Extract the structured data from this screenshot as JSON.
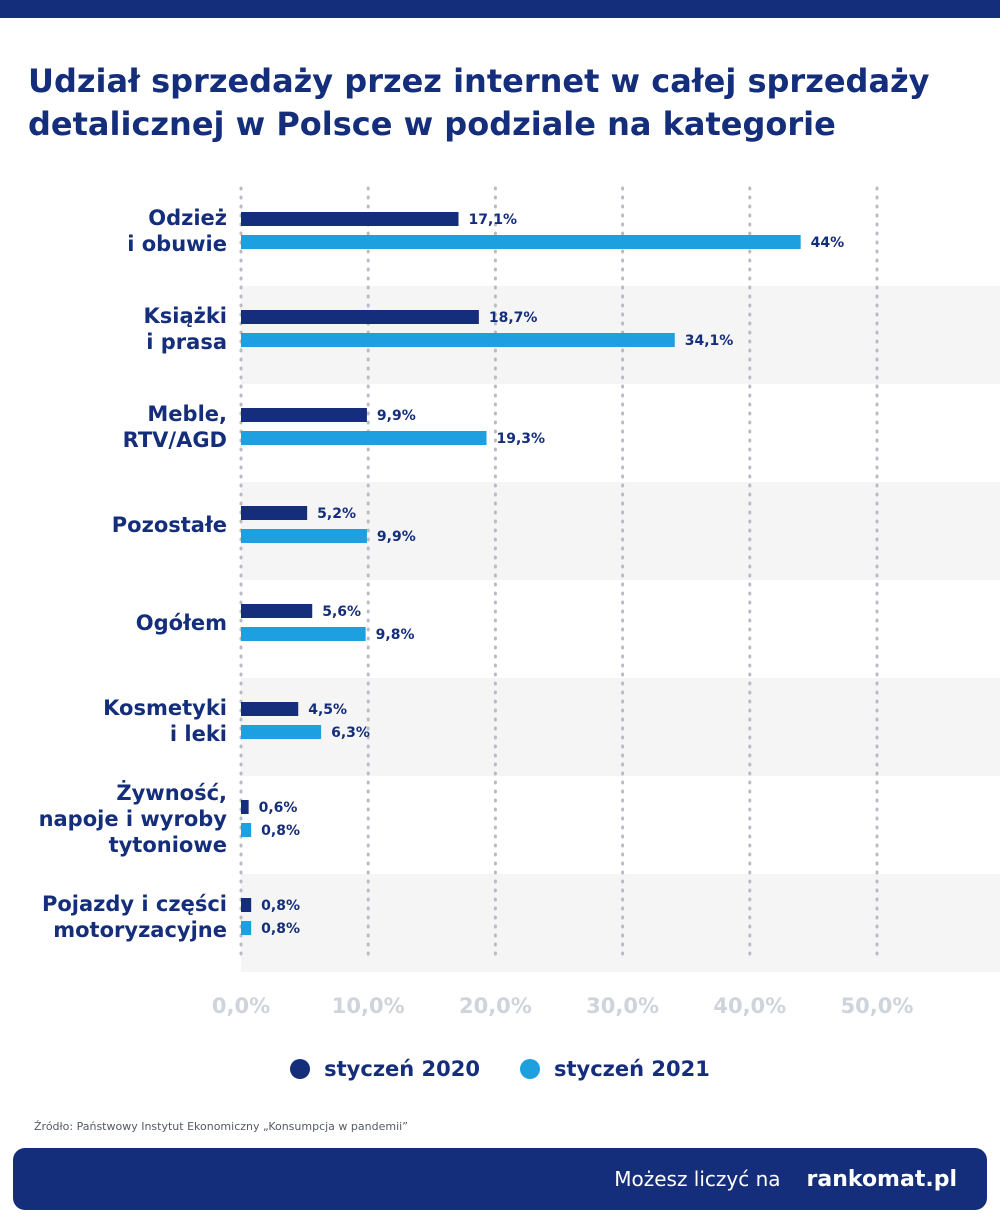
{
  "header": {
    "title": "Udział sprzedaży przez internet w całej sprzedaży detalicznej w Polsce w podziale na kategorie"
  },
  "chart_data": {
    "type": "bar",
    "orientation": "horizontal",
    "title": "Udział sprzedaży przez internet w całej sprzedaży detalicznej w Polsce w podziale na kategorie",
    "categories": [
      [
        "Odzież",
        "i obuwie"
      ],
      [
        "Książki",
        "i prasa"
      ],
      [
        "Meble,",
        "RTV/AGD"
      ],
      [
        "Pozostałe"
      ],
      [
        "Ogółem"
      ],
      [
        "Kosmetyki",
        "i leki"
      ],
      [
        "Żywność,",
        "napoje i wyroby",
        "tytoniowe"
      ],
      [
        "Pojazdy i części",
        "motoryzacyjne"
      ]
    ],
    "series": [
      {
        "name": "styczeń 2020",
        "color": "#142e7b",
        "values": [
          17.1,
          18.7,
          9.9,
          5.2,
          5.6,
          4.5,
          0.6,
          0.8
        ],
        "labels": [
          "17,1%",
          "18,7%",
          "9,9%",
          "5,2%",
          "5,6%",
          "4,5%",
          "0,6%",
          "0,8%"
        ]
      },
      {
        "name": "styczeń 2021",
        "color": "#1e9fe0",
        "values": [
          44,
          34.1,
          19.3,
          9.9,
          9.8,
          6.3,
          0.8,
          0.8
        ],
        "labels": [
          "44%",
          "34,1%",
          "19,3%",
          "9,9%",
          "9,8%",
          "6,3%",
          "0,8%",
          "0,8%"
        ]
      }
    ],
    "xlim": [
      0,
      50
    ],
    "xticks": [
      0,
      10,
      20,
      30,
      40,
      50
    ],
    "xtick_labels": [
      "0,0%",
      "10,0%",
      "20,0%",
      "30,0%",
      "40,0%",
      "50,0%"
    ],
    "grid": "vertical dotted",
    "legend_position": "bottom-center"
  },
  "legend": {
    "items": [
      {
        "label": "styczeń 2020",
        "color": "#142e7b"
      },
      {
        "label": "styczeń 2021",
        "color": "#1e9fe0"
      }
    ]
  },
  "source": "Źródło: Państwowy Instytut Ekonomiczny „Konsumpcja w pandemii”",
  "footer": {
    "tagline": "Możesz liczyć na",
    "brand": "rankomat.pl"
  },
  "colors": {
    "brand_navy": "#142e7b",
    "accent_blue": "#1e9fe0",
    "band_gray": "#f5f5f5"
  }
}
